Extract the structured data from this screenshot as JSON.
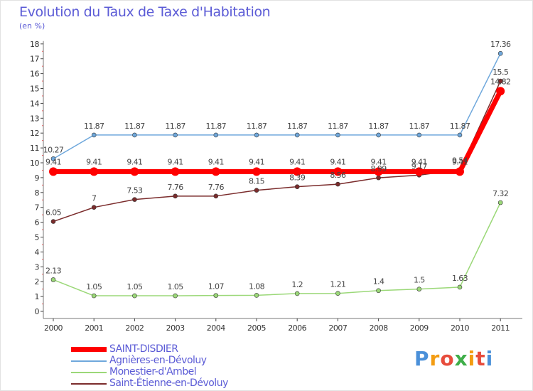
{
  "title": "Evolution du Taux de Taxe d'Habitation",
  "unit": "(en %)",
  "logo": {
    "text": "Proxiti",
    "letters": [
      "P",
      "r",
      "o",
      "x",
      "i",
      "t",
      "i"
    ],
    "colors": [
      "#4a90d9",
      "#f39c12",
      "#e74c3c",
      "#3fae49",
      "#f39c12",
      "#e74c3c",
      "#4a90d9"
    ]
  },
  "chart_data": {
    "type": "line",
    "x": [
      "2000",
      "2001",
      "2002",
      "2003",
      "2004",
      "2005",
      "2006",
      "2007",
      "2008",
      "2009",
      "2010",
      "2011"
    ],
    "ylim": [
      0,
      18
    ],
    "yticks": [
      "0",
      "1",
      "2",
      "3",
      "4",
      "5",
      "6",
      "7",
      "8",
      "9",
      "10",
      "11",
      "12",
      "13",
      "14",
      "15",
      "16",
      "17",
      "18"
    ],
    "grid": false,
    "legend_position": "bottom-left",
    "series": [
      {
        "name": "SAINT-DISDIER",
        "color": "#ff0000",
        "values": [
          9.41,
          9.41,
          9.41,
          9.41,
          9.41,
          9.41,
          9.41,
          9.41,
          9.41,
          9.41,
          9.41,
          14.82
        ],
        "labels": [
          "9.41",
          "9.41",
          "9.41",
          "9.41",
          "9.41",
          "9.41",
          "9.41",
          "9.41",
          "9.41",
          "9.41",
          "9.41",
          "14.82"
        ]
      },
      {
        "name": "Agnières-en-Dévoluy",
        "color": "#6fa8dc",
        "values": [
          10.27,
          11.87,
          11.87,
          11.87,
          11.87,
          11.87,
          11.87,
          11.87,
          11.87,
          11.87,
          11.87,
          17.36
        ],
        "labels": [
          "10.27",
          "11.87",
          "11.87",
          "11.87",
          "11.87",
          "11.87",
          "11.87",
          "11.87",
          "11.87",
          "11.87",
          "11.87",
          "17.36"
        ]
      },
      {
        "name": "Monestier-d'Ambel",
        "color": "#9bd878",
        "values": [
          2.13,
          1.05,
          1.05,
          1.05,
          1.07,
          1.08,
          1.2,
          1.21,
          1.4,
          1.5,
          1.63,
          7.32
        ],
        "labels": [
          "2.13",
          "1.05",
          "1.05",
          "1.05",
          "1.07",
          "1.08",
          "1.2",
          "1.21",
          "1.4",
          "1.5",
          "1.63",
          "7.32"
        ]
      },
      {
        "name": "Saint-Étienne-en-Dévoluy",
        "color": "#7b2c2c",
        "values": [
          6.05,
          7,
          7.53,
          7.76,
          7.76,
          8.15,
          8.39,
          8.56,
          8.99,
          9.17,
          9.54,
          15.5
        ],
        "labels": [
          "6.05",
          "7",
          "7.53",
          "7.76",
          "7.76",
          "8.15",
          "8.39",
          "8.56",
          "8.99",
          "9.17",
          "9.54",
          "15.5"
        ]
      }
    ]
  }
}
